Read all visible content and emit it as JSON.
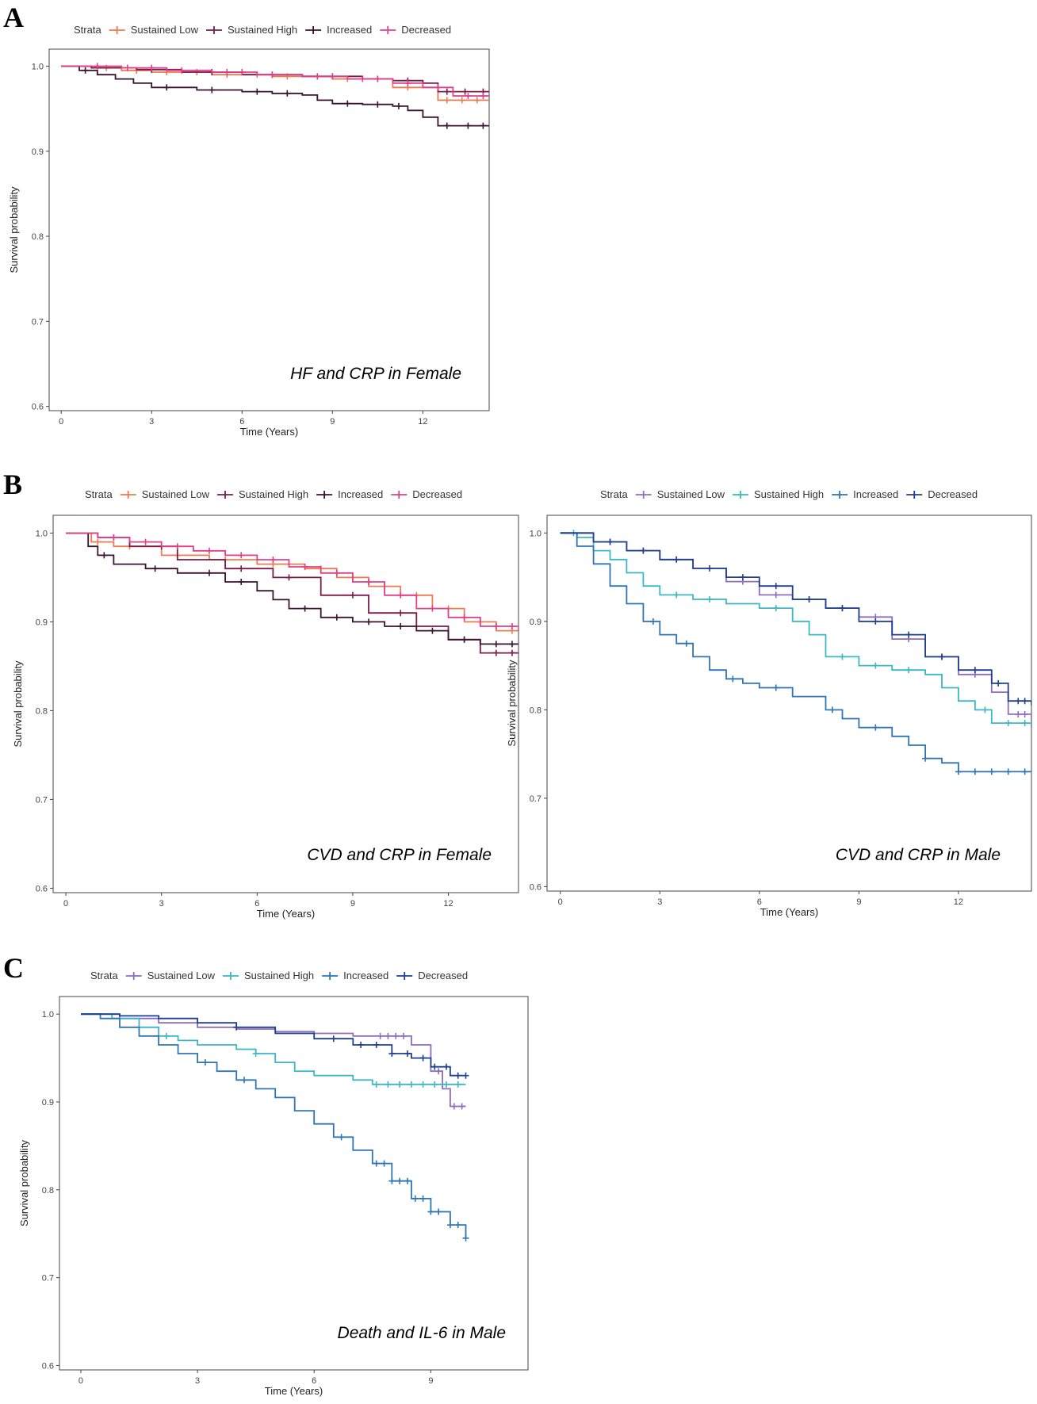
{
  "panels": [
    {
      "letter": "A"
    },
    {
      "letter": "B"
    },
    {
      "letter": "C"
    }
  ],
  "chart_data": [
    {
      "type": "line",
      "panel": "A",
      "annotation": "HF and CRP in Female",
      "title": "",
      "xlabel": "Time (Years)",
      "ylabel": "Survival probability",
      "xlim": [
        -0.4,
        14.2
      ],
      "ylim": [
        0.595,
        1.02
      ],
      "xticks": [
        0,
        3,
        6,
        9,
        12
      ],
      "yticks": [
        0.6,
        0.7,
        0.8,
        0.9,
        1.0
      ],
      "ytick_labels": [
        "0.6",
        "0.7",
        "0.8",
        "0.9",
        "1.0"
      ],
      "legend_title": "Strata",
      "legend_position": "top",
      "grid": false,
      "series": [
        {
          "name": "Sustained Low",
          "color": "#f07a4f",
          "x": [
            0,
            1.0,
            2.0,
            3.0,
            5.0,
            7.0,
            9.0,
            11.0,
            12.5,
            14.2
          ],
          "y": [
            1.0,
            0.998,
            0.995,
            0.993,
            0.99,
            0.988,
            0.985,
            0.975,
            0.96,
            0.96
          ],
          "censor_x": [
            1.5,
            2.5,
            3.5,
            4.5,
            5.5,
            6.5,
            7.5,
            8.5,
            9.5,
            10.5,
            11.5,
            12.8,
            13.3,
            13.8
          ]
        },
        {
          "name": "Sustained High",
          "color": "#7a1c4a",
          "x": [
            0,
            1.0,
            2.5,
            4.0,
            6.0,
            8.0,
            10.0,
            11.0,
            12.0,
            12.5,
            14.2
          ],
          "y": [
            1.0,
            0.998,
            0.996,
            0.993,
            0.99,
            0.988,
            0.985,
            0.983,
            0.98,
            0.97,
            0.97
          ],
          "censor_x": [
            3,
            5,
            7,
            9,
            11.5,
            12.8,
            13.4,
            14.0
          ]
        },
        {
          "name": "Increased",
          "color": "#3b1230",
          "x": [
            0,
            0.6,
            1.2,
            1.8,
            2.4,
            3.0,
            4.5,
            6.0,
            7.0,
            8.0,
            8.5,
            9.0,
            10.0,
            11.0,
            11.5,
            12.0,
            12.5,
            14.2
          ],
          "y": [
            1.0,
            0.995,
            0.99,
            0.985,
            0.98,
            0.975,
            0.972,
            0.97,
            0.968,
            0.966,
            0.96,
            0.956,
            0.955,
            0.953,
            0.948,
            0.94,
            0.93,
            0.93
          ],
          "censor_x": [
            0.8,
            3.5,
            5.0,
            6.5,
            7.5,
            9.5,
            10.5,
            11.2,
            12.8,
            13.5,
            14.0
          ]
        },
        {
          "name": "Decreased",
          "color": "#e0408a",
          "x": [
            0,
            1.0,
            2.0,
            3.5,
            5.0,
            6.5,
            8.0,
            9.5,
            11.0,
            12.0,
            13.0,
            14.2
          ],
          "y": [
            1.0,
            1.0,
            0.998,
            0.995,
            0.993,
            0.99,
            0.988,
            0.985,
            0.98,
            0.975,
            0.965,
            0.965
          ],
          "censor_x": [
            1.2,
            2.2,
            3.0,
            4.0,
            5.5,
            6.0,
            7.0,
            8.5,
            9.0,
            10.0,
            10.5,
            11.5,
            12.5,
            13.5,
            14.0
          ]
        }
      ]
    },
    {
      "type": "line",
      "panel": "B",
      "annotation": "CVD and CRP in Female",
      "title": "",
      "xlabel": "Time (Years)",
      "ylabel": "Survival probability",
      "xlim": [
        -0.4,
        14.2
      ],
      "ylim": [
        0.595,
        1.02
      ],
      "xticks": [
        0,
        3,
        6,
        9,
        12
      ],
      "yticks": [
        0.6,
        0.7,
        0.8,
        0.9,
        1.0
      ],
      "ytick_labels": [
        "0.6",
        "0.7",
        "0.8",
        "0.9",
        "1.0"
      ],
      "legend_title": "Strata",
      "legend_position": "top",
      "grid": false,
      "series": [
        {
          "name": "Sustained Low",
          "color": "#f07a4f",
          "x": [
            0,
            0.8,
            1.5,
            3.0,
            4.5,
            6.0,
            7.5,
            8.5,
            9.5,
            10.5,
            11.5,
            12.5,
            13.5,
            14.2
          ],
          "y": [
            1.0,
            0.99,
            0.985,
            0.975,
            0.97,
            0.965,
            0.96,
            0.95,
            0.94,
            0.93,
            0.915,
            0.9,
            0.89,
            0.89
          ],
          "censor_x": [
            1.0,
            2.0,
            3.5,
            5.0,
            6.5,
            8.0,
            9.0,
            10.0,
            11.0,
            12.0,
            13.0,
            14.0
          ]
        },
        {
          "name": "Sustained High",
          "color": "#7a1c4a",
          "x": [
            0,
            1.0,
            2.0,
            3.5,
            5.0,
            6.5,
            8.0,
            9.5,
            11.0,
            12.0,
            13.0,
            14.2
          ],
          "y": [
            1.0,
            0.995,
            0.985,
            0.97,
            0.96,
            0.95,
            0.93,
            0.91,
            0.895,
            0.88,
            0.865,
            0.865
          ],
          "censor_x": [
            1.5,
            3.0,
            5.5,
            7.0,
            9.0,
            10.5,
            12.5,
            13.5,
            14.0
          ]
        },
        {
          "name": "Increased",
          "color": "#3b1230",
          "x": [
            0,
            0.7,
            1.0,
            1.5,
            2.5,
            3.5,
            5.0,
            6.0,
            6.5,
            7.0,
            8.0,
            9.0,
            10.0,
            11.0,
            12.0,
            13.0,
            14.2
          ],
          "y": [
            1.0,
            0.985,
            0.975,
            0.965,
            0.96,
            0.955,
            0.945,
            0.935,
            0.925,
            0.915,
            0.905,
            0.9,
            0.895,
            0.89,
            0.88,
            0.875,
            0.875
          ],
          "censor_x": [
            1.2,
            2.8,
            4.5,
            5.5,
            7.5,
            8.5,
            9.5,
            10.5,
            11.5,
            12.5,
            13.5,
            14.0
          ]
        },
        {
          "name": "Decreased",
          "color": "#e0408a",
          "x": [
            0,
            1.0,
            2.0,
            3.0,
            4.0,
            5.0,
            6.0,
            7.0,
            8.0,
            9.0,
            10.0,
            11.0,
            12.0,
            13.0,
            14.2
          ],
          "y": [
            1.0,
            0.995,
            0.99,
            0.985,
            0.98,
            0.975,
            0.97,
            0.962,
            0.955,
            0.945,
            0.93,
            0.915,
            0.905,
            0.895,
            0.89
          ],
          "censor_x": [
            1.5,
            2.5,
            3.5,
            4.5,
            5.5,
            6.5,
            7.5,
            8.5,
            9.5,
            10.5,
            11.5,
            12.5,
            13.5,
            14.0
          ]
        }
      ]
    },
    {
      "type": "line",
      "panel": "B",
      "annotation": "CVD and CRP in Male",
      "title": "",
      "xlabel": "Time (Years)",
      "ylabel": "Survival probability",
      "xlim": [
        -0.4,
        14.2
      ],
      "ylim": [
        0.595,
        1.02
      ],
      "xticks": [
        0,
        3,
        6,
        9,
        12
      ],
      "yticks": [
        0.6,
        0.7,
        0.8,
        0.9,
        1.0
      ],
      "ytick_labels": [
        "0.6",
        "0.7",
        "0.8",
        "0.9",
        "1.0"
      ],
      "legend_title": "Strata",
      "legend_position": "top",
      "grid": false,
      "series": [
        {
          "name": "Sustained Low",
          "color": "#8e6cc0",
          "x": [
            0,
            1.0,
            2.0,
            3.0,
            4.0,
            5.0,
            6.0,
            7.0,
            8.0,
            9.0,
            10.0,
            11.0,
            12.0,
            13.0,
            13.5,
            14.2
          ],
          "y": [
            1.0,
            0.99,
            0.98,
            0.97,
            0.96,
            0.945,
            0.93,
            0.925,
            0.915,
            0.905,
            0.88,
            0.86,
            0.84,
            0.82,
            0.795,
            0.78
          ],
          "censor_x": [
            1.5,
            2.5,
            3.5,
            5.5,
            6.5,
            7.5,
            8.5,
            9.5,
            10.5,
            11.5,
            12.5,
            13.8,
            14.0
          ]
        },
        {
          "name": "Sustained High",
          "color": "#3ab8c4",
          "x": [
            0,
            0.5,
            1.0,
            1.5,
            2.0,
            2.5,
            3.0,
            4.0,
            5.0,
            6.0,
            7.0,
            7.5,
            8.0,
            9.0,
            10.0,
            11.0,
            11.5,
            12.0,
            12.5,
            13.0,
            14.2
          ],
          "y": [
            1.0,
            0.995,
            0.98,
            0.97,
            0.955,
            0.94,
            0.93,
            0.925,
            0.92,
            0.915,
            0.9,
            0.885,
            0.86,
            0.85,
            0.845,
            0.84,
            0.825,
            0.81,
            0.8,
            0.785,
            0.785
          ],
          "censor_x": [
            0.4,
            3.5,
            4.5,
            6.5,
            8.5,
            9.5,
            10.5,
            12.8,
            13.5,
            14.0
          ]
        },
        {
          "name": "Increased",
          "color": "#2f75b5",
          "x": [
            0,
            0.5,
            1.0,
            1.5,
            2.0,
            2.5,
            3.0,
            3.5,
            4.0,
            4.5,
            5.0,
            5.5,
            6.0,
            7.0,
            8.0,
            8.5,
            9.0,
            10.0,
            10.5,
            11.0,
            11.5,
            12.0,
            14.2
          ],
          "y": [
            1.0,
            0.985,
            0.965,
            0.94,
            0.92,
            0.9,
            0.885,
            0.875,
            0.86,
            0.845,
            0.835,
            0.83,
            0.825,
            0.815,
            0.8,
            0.79,
            0.78,
            0.77,
            0.76,
            0.745,
            0.74,
            0.73,
            0.73
          ],
          "censor_x": [
            2.8,
            3.8,
            5.2,
            6.5,
            8.2,
            9.5,
            11.0,
            12.0,
            12.5,
            13.0,
            13.5,
            14.0
          ]
        },
        {
          "name": "Decreased",
          "color": "#1f3f8f",
          "x": [
            0,
            1.0,
            2.0,
            3.0,
            4.0,
            5.0,
            6.0,
            7.0,
            8.0,
            9.0,
            10.0,
            11.0,
            12.0,
            13.0,
            13.5,
            14.2
          ],
          "y": [
            1.0,
            0.99,
            0.98,
            0.97,
            0.96,
            0.95,
            0.94,
            0.925,
            0.915,
            0.9,
            0.885,
            0.86,
            0.845,
            0.83,
            0.81,
            0.805
          ],
          "censor_x": [
            1.5,
            2.5,
            3.5,
            4.5,
            5.5,
            6.5,
            7.5,
            8.5,
            9.5,
            10.5,
            11.5,
            12.5,
            13.2,
            13.8,
            14.0
          ]
        }
      ]
    },
    {
      "type": "line",
      "panel": "C",
      "annotation": "Death and IL-6 in Male",
      "title": "",
      "xlabel": "Time (Years)",
      "ylabel": "Survival probability",
      "xlim": [
        -0.55,
        11.5
      ],
      "ylim": [
        0.595,
        1.02
      ],
      "xticks": [
        0,
        3,
        6,
        9
      ],
      "yticks": [
        0.6,
        0.7,
        0.8,
        0.9,
        1.0
      ],
      "ytick_labels": [
        "0.6",
        "0.7",
        "0.8",
        "0.9",
        "1.0"
      ],
      "legend_title": "Strata",
      "legend_position": "top",
      "grid": false,
      "series": [
        {
          "name": "Sustained Low",
          "color": "#8e6cc0",
          "x": [
            0,
            1.0,
            2.0,
            3.0,
            4.0,
            5.0,
            6.0,
            7.0,
            8.5,
            9.0,
            9.3,
            9.5,
            9.9
          ],
          "y": [
            1.0,
            0.995,
            0.99,
            0.985,
            0.983,
            0.98,
            0.978,
            0.975,
            0.965,
            0.935,
            0.915,
            0.895,
            0.895
          ],
          "censor_x": [
            7.7,
            7.9,
            8.1,
            8.3,
            9.2,
            9.6,
            9.8
          ]
        },
        {
          "name": "Sustained High",
          "color": "#3ab8c4",
          "x": [
            0,
            0.8,
            1.5,
            2.0,
            2.5,
            3.0,
            4.0,
            4.5,
            5.0,
            5.5,
            6.0,
            7.0,
            7.5,
            9.9
          ],
          "y": [
            1.0,
            0.995,
            0.985,
            0.975,
            0.97,
            0.965,
            0.96,
            0.955,
            0.945,
            0.935,
            0.93,
            0.925,
            0.92,
            0.92
          ],
          "censor_x": [
            2.2,
            4.5,
            7.6,
            7.9,
            8.2,
            8.5,
            8.8,
            9.1,
            9.4,
            9.7
          ]
        },
        {
          "name": "Increased",
          "color": "#2f75b5",
          "x": [
            0,
            0.5,
            1.0,
            1.5,
            2.0,
            2.5,
            3.0,
            3.5,
            4.0,
            4.5,
            5.0,
            5.5,
            6.0,
            6.5,
            7.0,
            7.5,
            8.0,
            8.5,
            9.0,
            9.5,
            9.9
          ],
          "y": [
            1.0,
            0.995,
            0.985,
            0.975,
            0.965,
            0.955,
            0.945,
            0.935,
            0.925,
            0.915,
            0.905,
            0.89,
            0.875,
            0.86,
            0.845,
            0.83,
            0.81,
            0.79,
            0.775,
            0.76,
            0.745
          ],
          "censor_x": [
            3.2,
            4.2,
            6.7,
            7.6,
            7.8,
            8.0,
            8.2,
            8.4,
            8.6,
            8.8,
            9.0,
            9.2,
            9.5,
            9.7,
            9.9
          ]
        },
        {
          "name": "Decreased",
          "color": "#1f3f8f",
          "x": [
            0,
            1.0,
            2.0,
            3.0,
            4.0,
            5.0,
            6.0,
            7.0,
            8.0,
            8.5,
            9.0,
            9.5,
            9.9
          ],
          "y": [
            1.0,
            0.998,
            0.995,
            0.99,
            0.985,
            0.978,
            0.972,
            0.965,
            0.955,
            0.95,
            0.94,
            0.93,
            0.93
          ],
          "censor_x": [
            4.0,
            6.5,
            7.2,
            7.6,
            8.0,
            8.4,
            8.8,
            9.1,
            9.4,
            9.7,
            9.9
          ]
        }
      ]
    }
  ]
}
